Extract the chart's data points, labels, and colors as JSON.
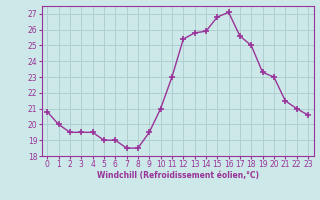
{
  "x": [
    0,
    1,
    2,
    3,
    4,
    5,
    6,
    7,
    8,
    9,
    10,
    11,
    12,
    13,
    14,
    15,
    16,
    17,
    18,
    19,
    20,
    21,
    22,
    23
  ],
  "y": [
    20.8,
    20.0,
    19.5,
    19.5,
    19.5,
    19.0,
    19.0,
    18.5,
    18.5,
    19.5,
    21.0,
    23.0,
    25.4,
    25.8,
    25.9,
    26.8,
    27.1,
    25.6,
    25.0,
    23.3,
    23.0,
    21.5,
    21.0,
    20.6
  ],
  "line_color": "#993399",
  "marker": "+",
  "marker_size": 4,
  "marker_lw": 1.2,
  "bg_color": "#cce8e8",
  "grid_color": "#b0d0d0",
  "xlabel": "Windchill (Refroidissement éolien,°C)",
  "xlabel_color": "#993399",
  "tick_color": "#993399",
  "spine_color": "#993399",
  "ylim": [
    18,
    27.5
  ],
  "xlim": [
    -0.5,
    23.5
  ],
  "yticks": [
    18,
    19,
    20,
    21,
    22,
    23,
    24,
    25,
    26,
    27
  ],
  "xticks": [
    0,
    1,
    2,
    3,
    4,
    5,
    6,
    7,
    8,
    9,
    10,
    11,
    12,
    13,
    14,
    15,
    16,
    17,
    18,
    19,
    20,
    21,
    22,
    23
  ],
  "tick_fontsize": 5.5,
  "xlabel_fontsize": 5.5,
  "linewidth": 1.0
}
